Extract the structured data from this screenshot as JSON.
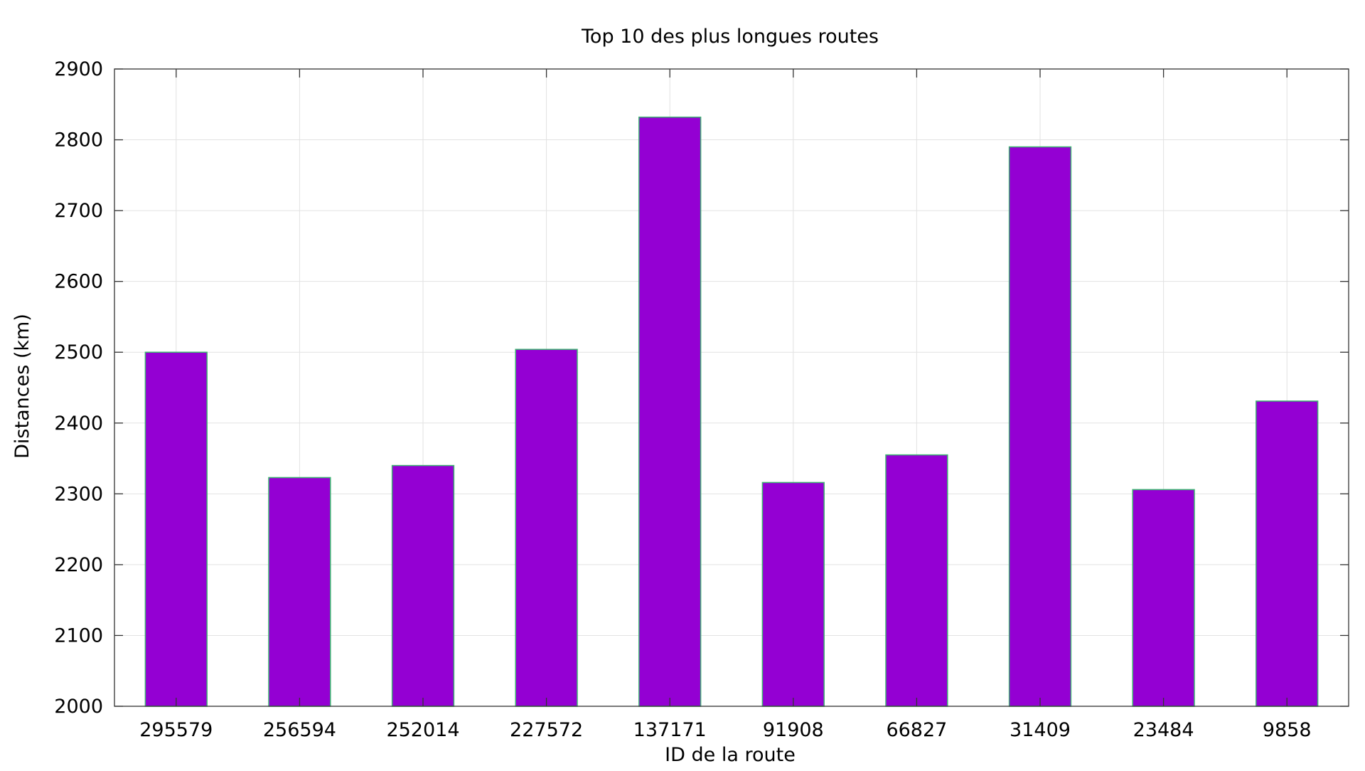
{
  "chart_data": {
    "type": "bar",
    "title": "Top 10 des plus longues routes",
    "xlabel": "ID de la route",
    "ylabel": "Distances (km)",
    "categories": [
      "295579",
      "256594",
      "252014",
      "227572",
      "137171",
      "91908",
      "66827",
      "31409",
      "23484",
      "9858"
    ],
    "values": [
      2500,
      2323,
      2340,
      2504,
      2832,
      2316,
      2355,
      2790,
      2306,
      2431
    ],
    "ylim": [
      2000,
      2900
    ],
    "yticks": [
      2000,
      2100,
      2200,
      2300,
      2400,
      2500,
      2600,
      2700,
      2800,
      2900
    ],
    "grid": true,
    "legend": "none",
    "colors": {
      "bar_fill": "#9400D3",
      "bar_edge": "#3CB371",
      "grid": "#e2e2e2",
      "axis": "#333333"
    }
  }
}
